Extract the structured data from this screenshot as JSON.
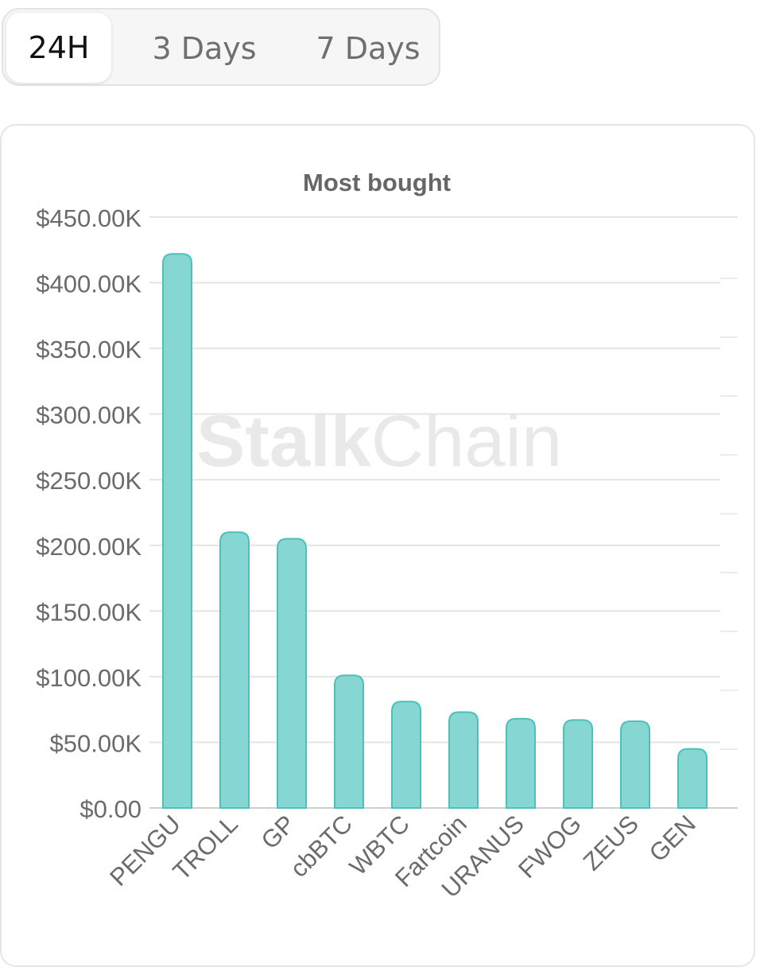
{
  "tabs": [
    {
      "label": "24H",
      "active": true
    },
    {
      "label": "3 Days",
      "active": false
    },
    {
      "label": "7 Days",
      "active": false
    }
  ],
  "watermark": {
    "bold": "Stalk",
    "light": "Chain"
  },
  "colors": {
    "bar_fill": "#86d6d3",
    "bar_stroke": "#4cc0b9",
    "grid": "#e4e4e4",
    "axis_text": "#6b6b6b",
    "title_text": "#666666"
  },
  "chart_data": {
    "type": "bar",
    "title": "Most bought",
    "xlabel": "",
    "ylabel": "",
    "categories": [
      "PENGU",
      "TROLL",
      "GP",
      "cbBTC",
      "WBTC",
      "Fartcoin",
      "URANUS",
      "FWOG",
      "ZEUS",
      "GEN"
    ],
    "values": [
      422000,
      210000,
      205000,
      101000,
      81000,
      73000,
      68000,
      67000,
      66000,
      45000
    ],
    "ylim": [
      0,
      450000
    ],
    "yticks": [
      "$0.00",
      "$50.00K",
      "$100.00K",
      "$150.00K",
      "$200.00K",
      "$250.00K",
      "$300.00K",
      "$350.00K",
      "$400.00K",
      "$450.00K"
    ],
    "grid": true,
    "legend": "none"
  }
}
